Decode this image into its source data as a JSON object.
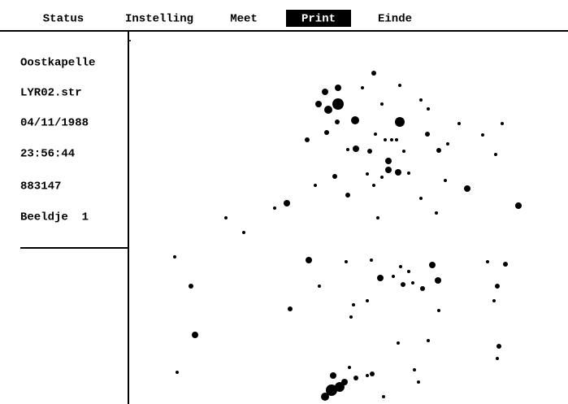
{
  "menu": {
    "items": [
      "Status",
      "Instelling",
      "Meet",
      "Print",
      "Einde"
    ],
    "active_index": 3
  },
  "info": [
    "Oostkapelle",
    "LYR02.str",
    "04/11/1988",
    "23:56:44",
    "883147",
    "Beeldje  1"
  ]
}
